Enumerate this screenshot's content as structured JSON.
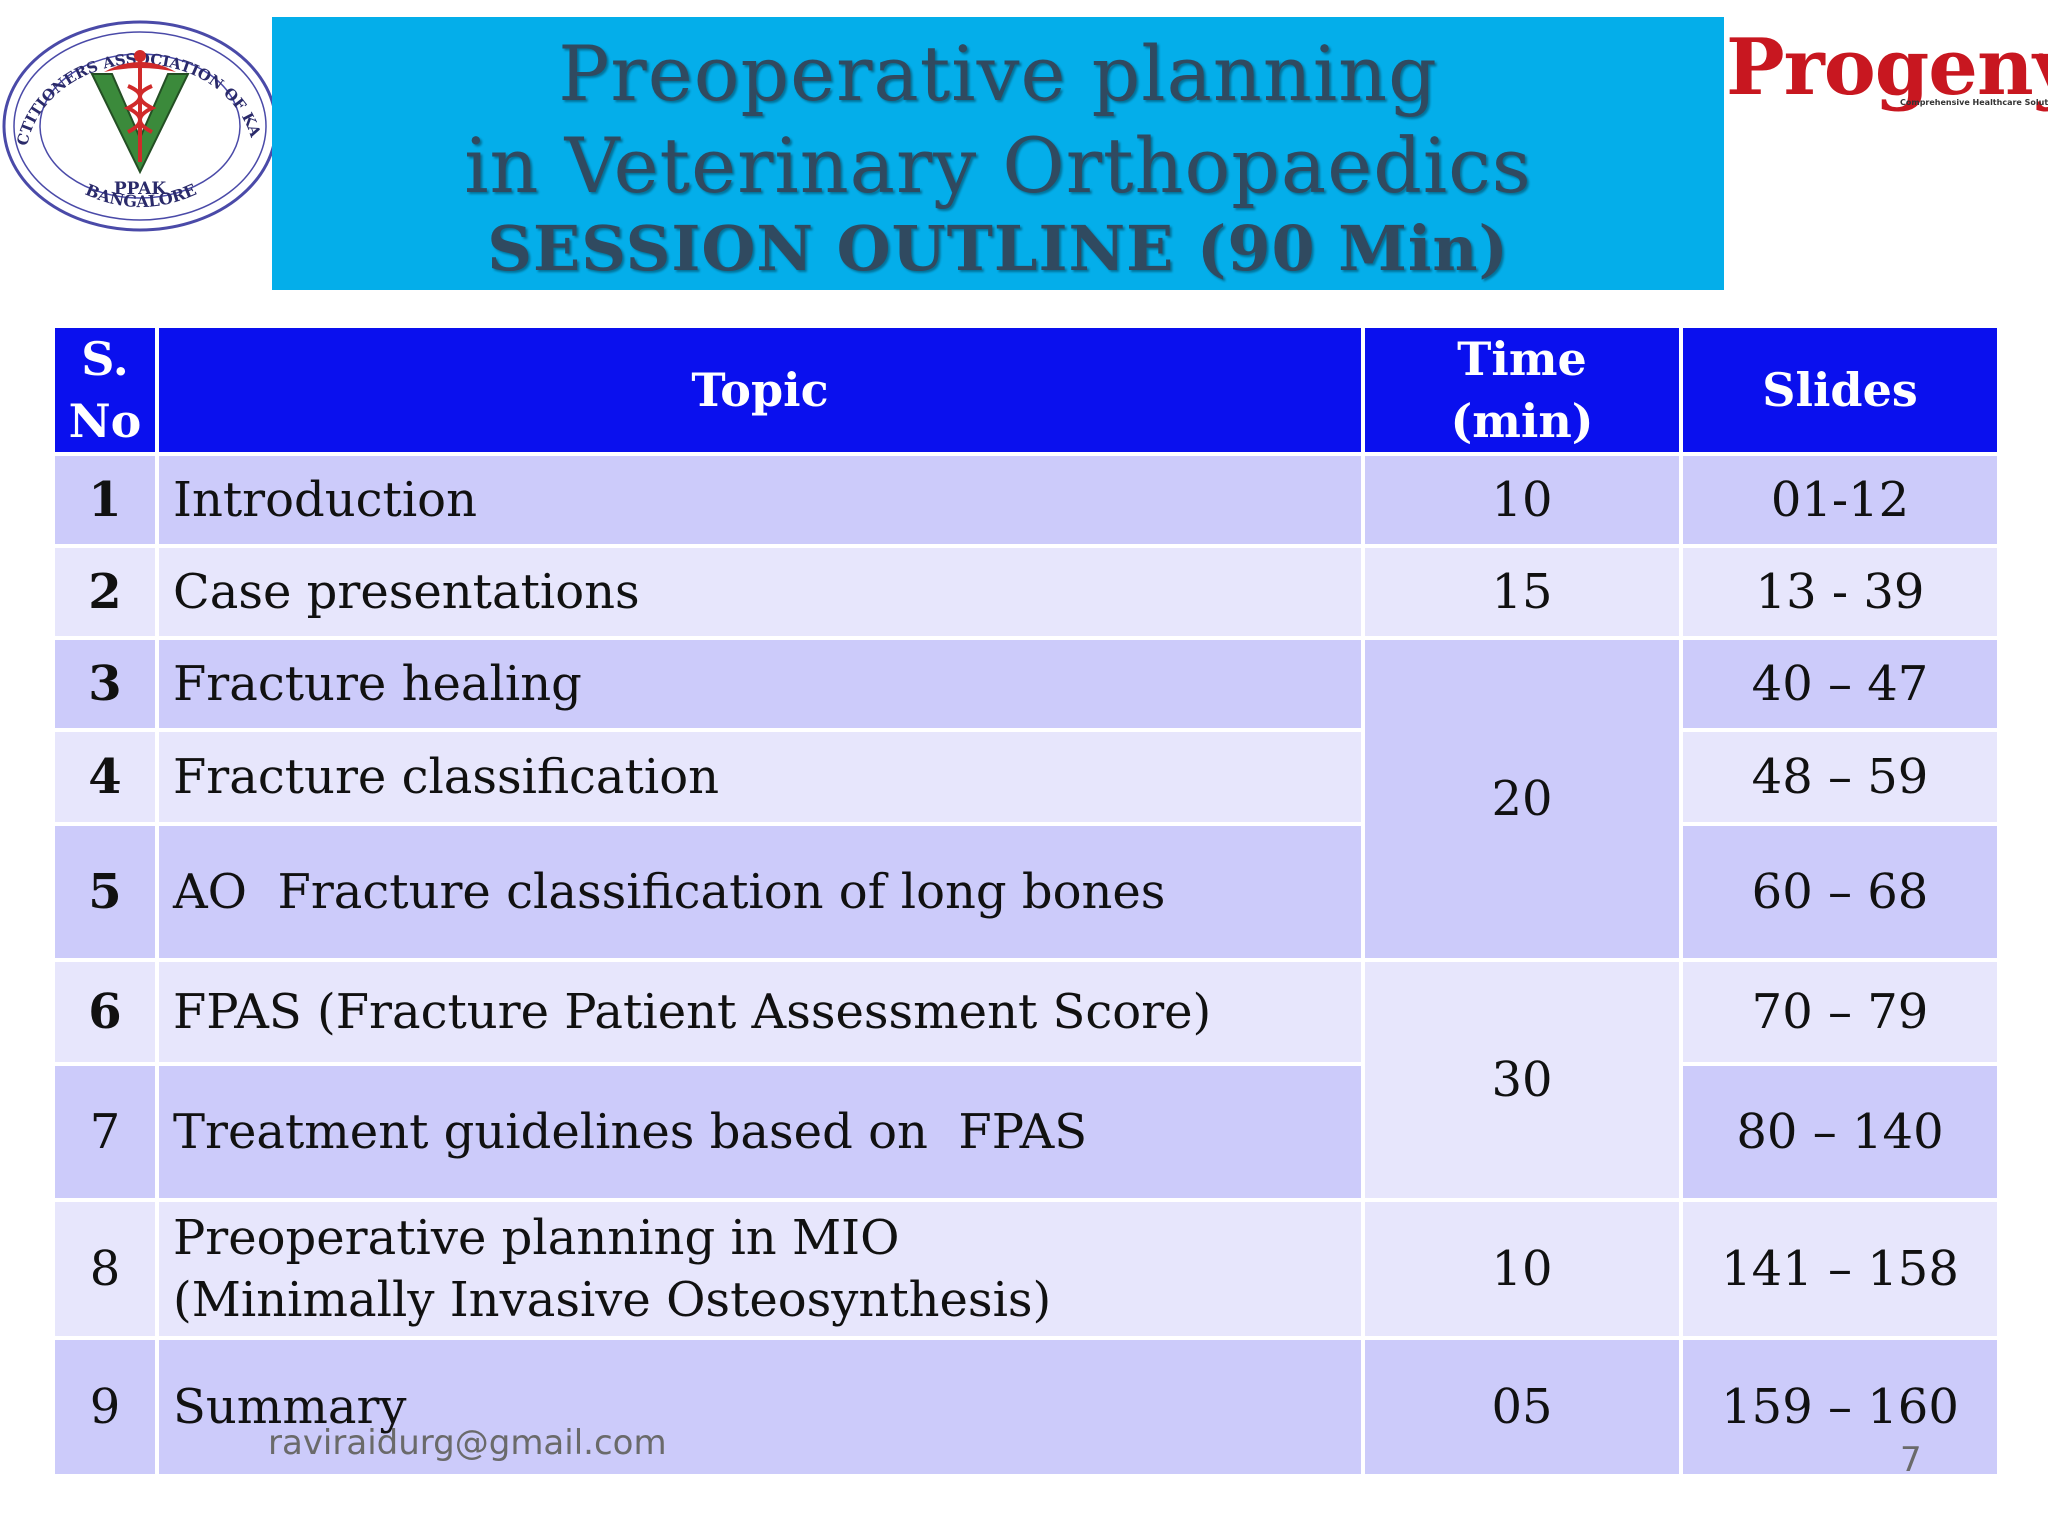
{
  "logos": {
    "left": {
      "icon": "ppak-caduceus-seal-icon",
      "ring_text": "PET PRACTITIONERS ASSOCIATION OF KARNATAKA",
      "center_text_1": "PPAK",
      "center_text_2": "BANGALORE",
      "colors": {
        "ring": "#4a4aa8",
        "v": "#3b8a3b",
        "caduceus": "#d02a2a"
      }
    },
    "right": {
      "icon": "progeny-logo-icon",
      "wordmark": "Progeny",
      "tagline": "Comprehensive Healthcare Solutions",
      "registered": "®",
      "color": "#c81720"
    }
  },
  "title": {
    "line1": "Preoperative planning",
    "line2": "in Veterinary Orthopaedics",
    "line3": "SESSION OUTLINE (90 Min)",
    "banner_color": "#04aeea",
    "text_color": "#304a60"
  },
  "table": {
    "header_color": "#0a10ee",
    "row_colors": [
      "#cccbfa",
      "#e7e6fc"
    ],
    "headers": {
      "sno_1": "S.",
      "sno_2": "No",
      "topic": "Topic",
      "time_1": "Time",
      "time_2": "(min)",
      "slides": "Slides"
    },
    "rows": [
      {
        "sno": "1",
        "topic": "Introduction",
        "time": "10",
        "slides": "01-12"
      },
      {
        "sno": "2",
        "topic": "Case presentations",
        "time": "15",
        "slides": "13 - 39"
      },
      {
        "sno": "3",
        "topic": "Fracture healing",
        "time": "20",
        "slides": "40 – 47"
      },
      {
        "sno": "4",
        "topic": "Fracture classification",
        "time": "",
        "slides": "48 – 59"
      },
      {
        "sno": "5",
        "topic": "AO  Fracture classification of long bones",
        "time": "",
        "slides": "60 – 68"
      },
      {
        "sno": "6",
        "topic": "FPAS (Fracture Patient Assessment Score)",
        "time": "30",
        "slides": "70 – 79"
      },
      {
        "sno": "7",
        "topic": "Treatment guidelines based on  FPAS",
        "time": "",
        "slides": "80 – 140"
      },
      {
        "sno": "8",
        "topic_line1": "Preoperative planning in MIO",
        "topic_line2": "(Minimally Invasive Osteosynthesis)",
        "time": "10",
        "slides": "141 – 158"
      },
      {
        "sno": "9",
        "topic": "Summary",
        "time": "05",
        "slides": "159 – 160"
      }
    ]
  },
  "footer": {
    "email": "raviraidurg@gmail.com",
    "page": "7"
  }
}
